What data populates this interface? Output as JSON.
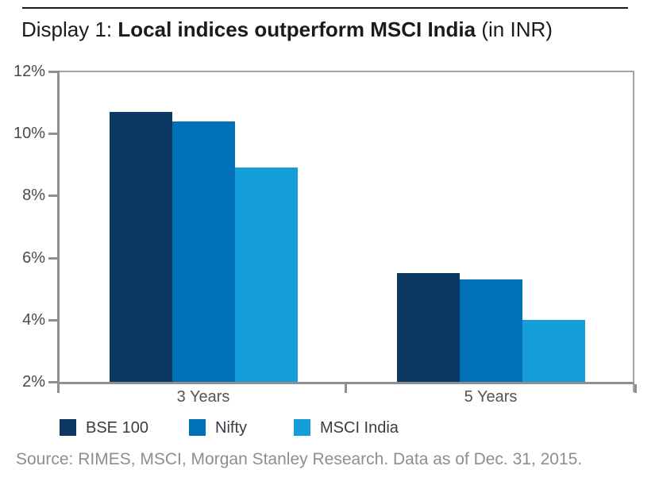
{
  "header": {
    "title_prefix": "Display 1: ",
    "title_bold": "Local indices outperform MSCI India",
    "title_suffix": " (in INR)"
  },
  "chart_data": {
    "type": "bar",
    "title": "Display 1: Local indices outperform MSCI India (in INR)",
    "categories": [
      "3 Years",
      "5 Years"
    ],
    "series": [
      {
        "name": "BSE 100",
        "color": "#0c3760",
        "values": [
          10.7,
          5.5
        ]
      },
      {
        "name": "Nifty",
        "color": "#0070b8",
        "values": [
          10.4,
          5.3
        ]
      },
      {
        "name": "MSCI India",
        "color": "#149dd9",
        "values": [
          8.9,
          4.0
        ]
      }
    ],
    "ylim": [
      2,
      12
    ],
    "y_tick_values": [
      12,
      10,
      8,
      6,
      4,
      2
    ],
    "y_tick_suffix": "%",
    "grid": false,
    "legend_position": "bottom",
    "frame_color": "#8f8f8f",
    "axis_label_color": "#49494f"
  },
  "footer": {
    "source": "Source: RIMES, MSCI, Morgan Stanley Research. Data as of Dec. 31, 2015."
  }
}
